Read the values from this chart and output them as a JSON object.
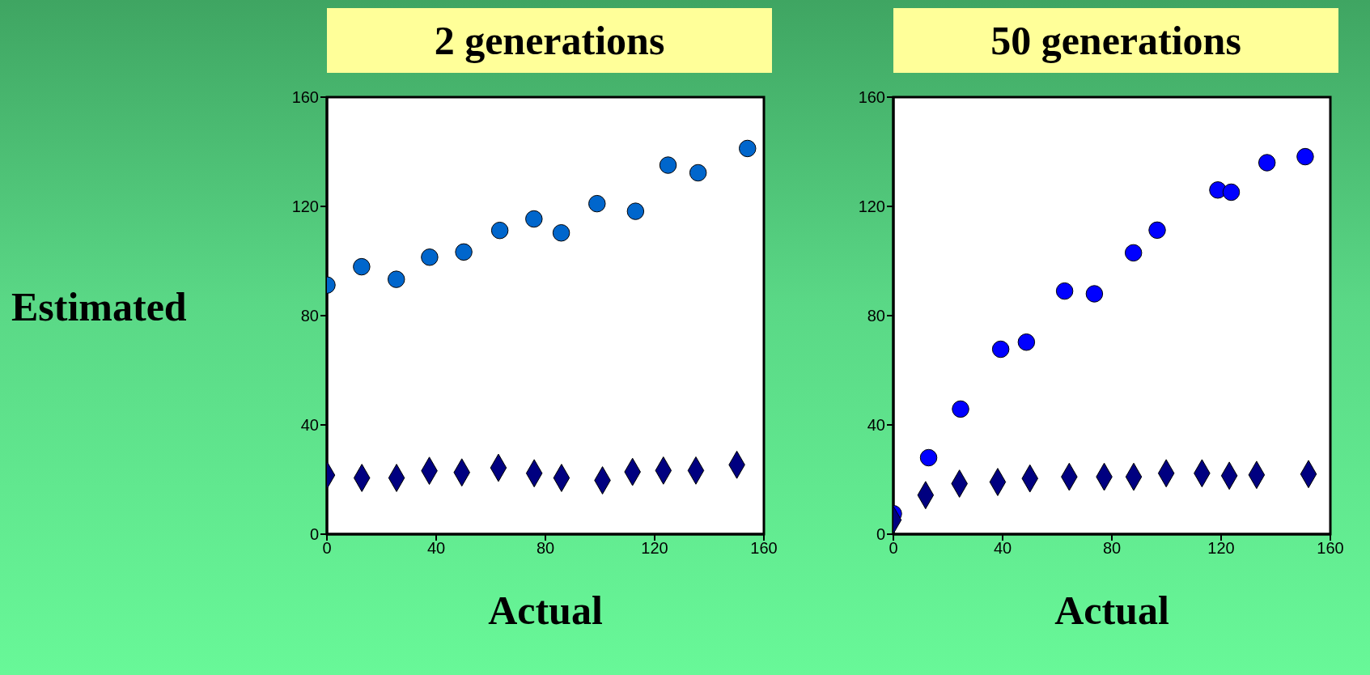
{
  "chart_data": [
    {
      "type": "scatter",
      "title": "2 generations",
      "xlabel": "Actual",
      "ylabel": "Estimated",
      "xlim": [
        0,
        160
      ],
      "ylim": [
        0,
        160
      ],
      "xticks": [
        0,
        40,
        80,
        120,
        160
      ],
      "yticks": [
        0,
        40,
        80,
        120,
        160
      ],
      "series": [
        {
          "color": "#0066cc",
          "marker": "circle",
          "x": [
            0,
            12.7,
            25.4,
            37.6,
            50.1,
            63.3,
            75.8,
            85.8,
            98.9,
            113,
            124.9,
            135.9,
            154
          ],
          "values": [
            91.2,
            97.9,
            93.3,
            101.4,
            103.3,
            111.2,
            115.4,
            110.3,
            121,
            118.2,
            135.1,
            132.3,
            141.2
          ]
        },
        {
          "color": "#000080",
          "marker": "diamond",
          "x": [
            0,
            12.8,
            25.5,
            37.5,
            49.4,
            62.8,
            75.9,
            85.9,
            100.9,
            111.9,
            123.2,
            135.1,
            150.1
          ],
          "values": [
            21.6,
            20.6,
            20.6,
            23.2,
            22.6,
            24.3,
            22.3,
            20.6,
            19.7,
            22.8,
            23.3,
            23.3,
            25.4
          ]
        }
      ]
    },
    {
      "type": "scatter",
      "title": "50 generations",
      "xlabel": "Actual",
      "xlim": [
        0,
        160
      ],
      "ylim": [
        0,
        160
      ],
      "xticks": [
        0,
        40,
        80,
        120,
        160
      ],
      "yticks": [
        0,
        40,
        80,
        120,
        160
      ],
      "series": [
        {
          "color": "#0000ff",
          "marker": "circle",
          "x": [
            0,
            12.9,
            24.6,
            39.3,
            48.7,
            62.7,
            73.6,
            87.9,
            96.6,
            118.8,
            123.7,
            136.8,
            150.8
          ],
          "values": [
            7.5,
            28,
            45.8,
            67.7,
            70.3,
            89,
            88,
            103,
            111.3,
            126,
            125.2,
            136,
            138.2
          ]
        },
        {
          "color": "#000080",
          "marker": "diamond",
          "x": [
            0,
            11.8,
            24.2,
            38.2,
            50,
            64.4,
            77.2,
            88,
            99.9,
            113,
            123,
            133,
            152
          ],
          "values": [
            5.2,
            14.3,
            18.5,
            19.1,
            20.4,
            21,
            21,
            21,
            22.3,
            22.3,
            21.4,
            21.7,
            22
          ]
        }
      ]
    }
  ]
}
